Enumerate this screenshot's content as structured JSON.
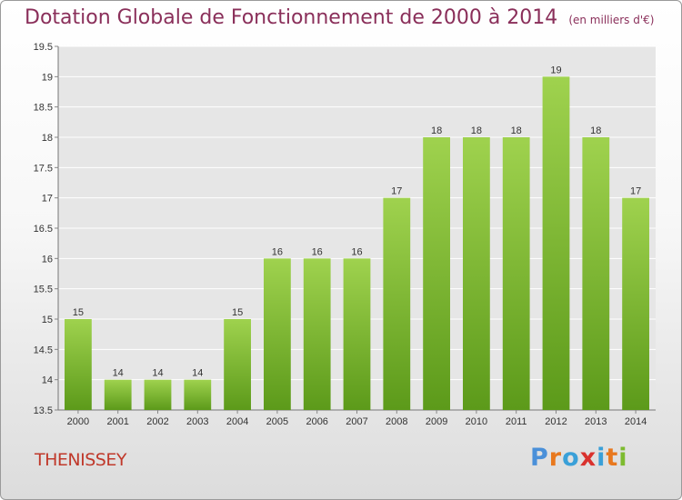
{
  "chart_data": {
    "type": "bar",
    "title": "Dotation Globale de Fonctionnement de 2000 à 2014",
    "subtitle": "(en milliers d'€)",
    "categories": [
      "2000",
      "2001",
      "2002",
      "2003",
      "2004",
      "2005",
      "2006",
      "2007",
      "2008",
      "2009",
      "2010",
      "2011",
      "2012",
      "2013",
      "2014"
    ],
    "values": [
      15,
      14,
      14,
      14,
      15,
      16,
      16,
      16,
      17,
      18,
      18,
      18,
      19,
      18,
      17
    ],
    "ylim": [
      13.5,
      19.5
    ],
    "yticks": [
      "13.5",
      "14",
      "14.5",
      "15",
      "15.5",
      "16",
      "16.5",
      "17",
      "17.5",
      "18",
      "18.5",
      "19",
      "19.5"
    ],
    "grid": true,
    "bar_color": "#7dbb2f"
  },
  "place_name": "THENISSEY",
  "logo": {
    "text": "Proxiti",
    "colors": [
      "#4a90d9",
      "#e8781e",
      "#3aa0d8",
      "#d9322e",
      "#3aa0d8",
      "#e8781e",
      "#7dbb2f"
    ]
  }
}
